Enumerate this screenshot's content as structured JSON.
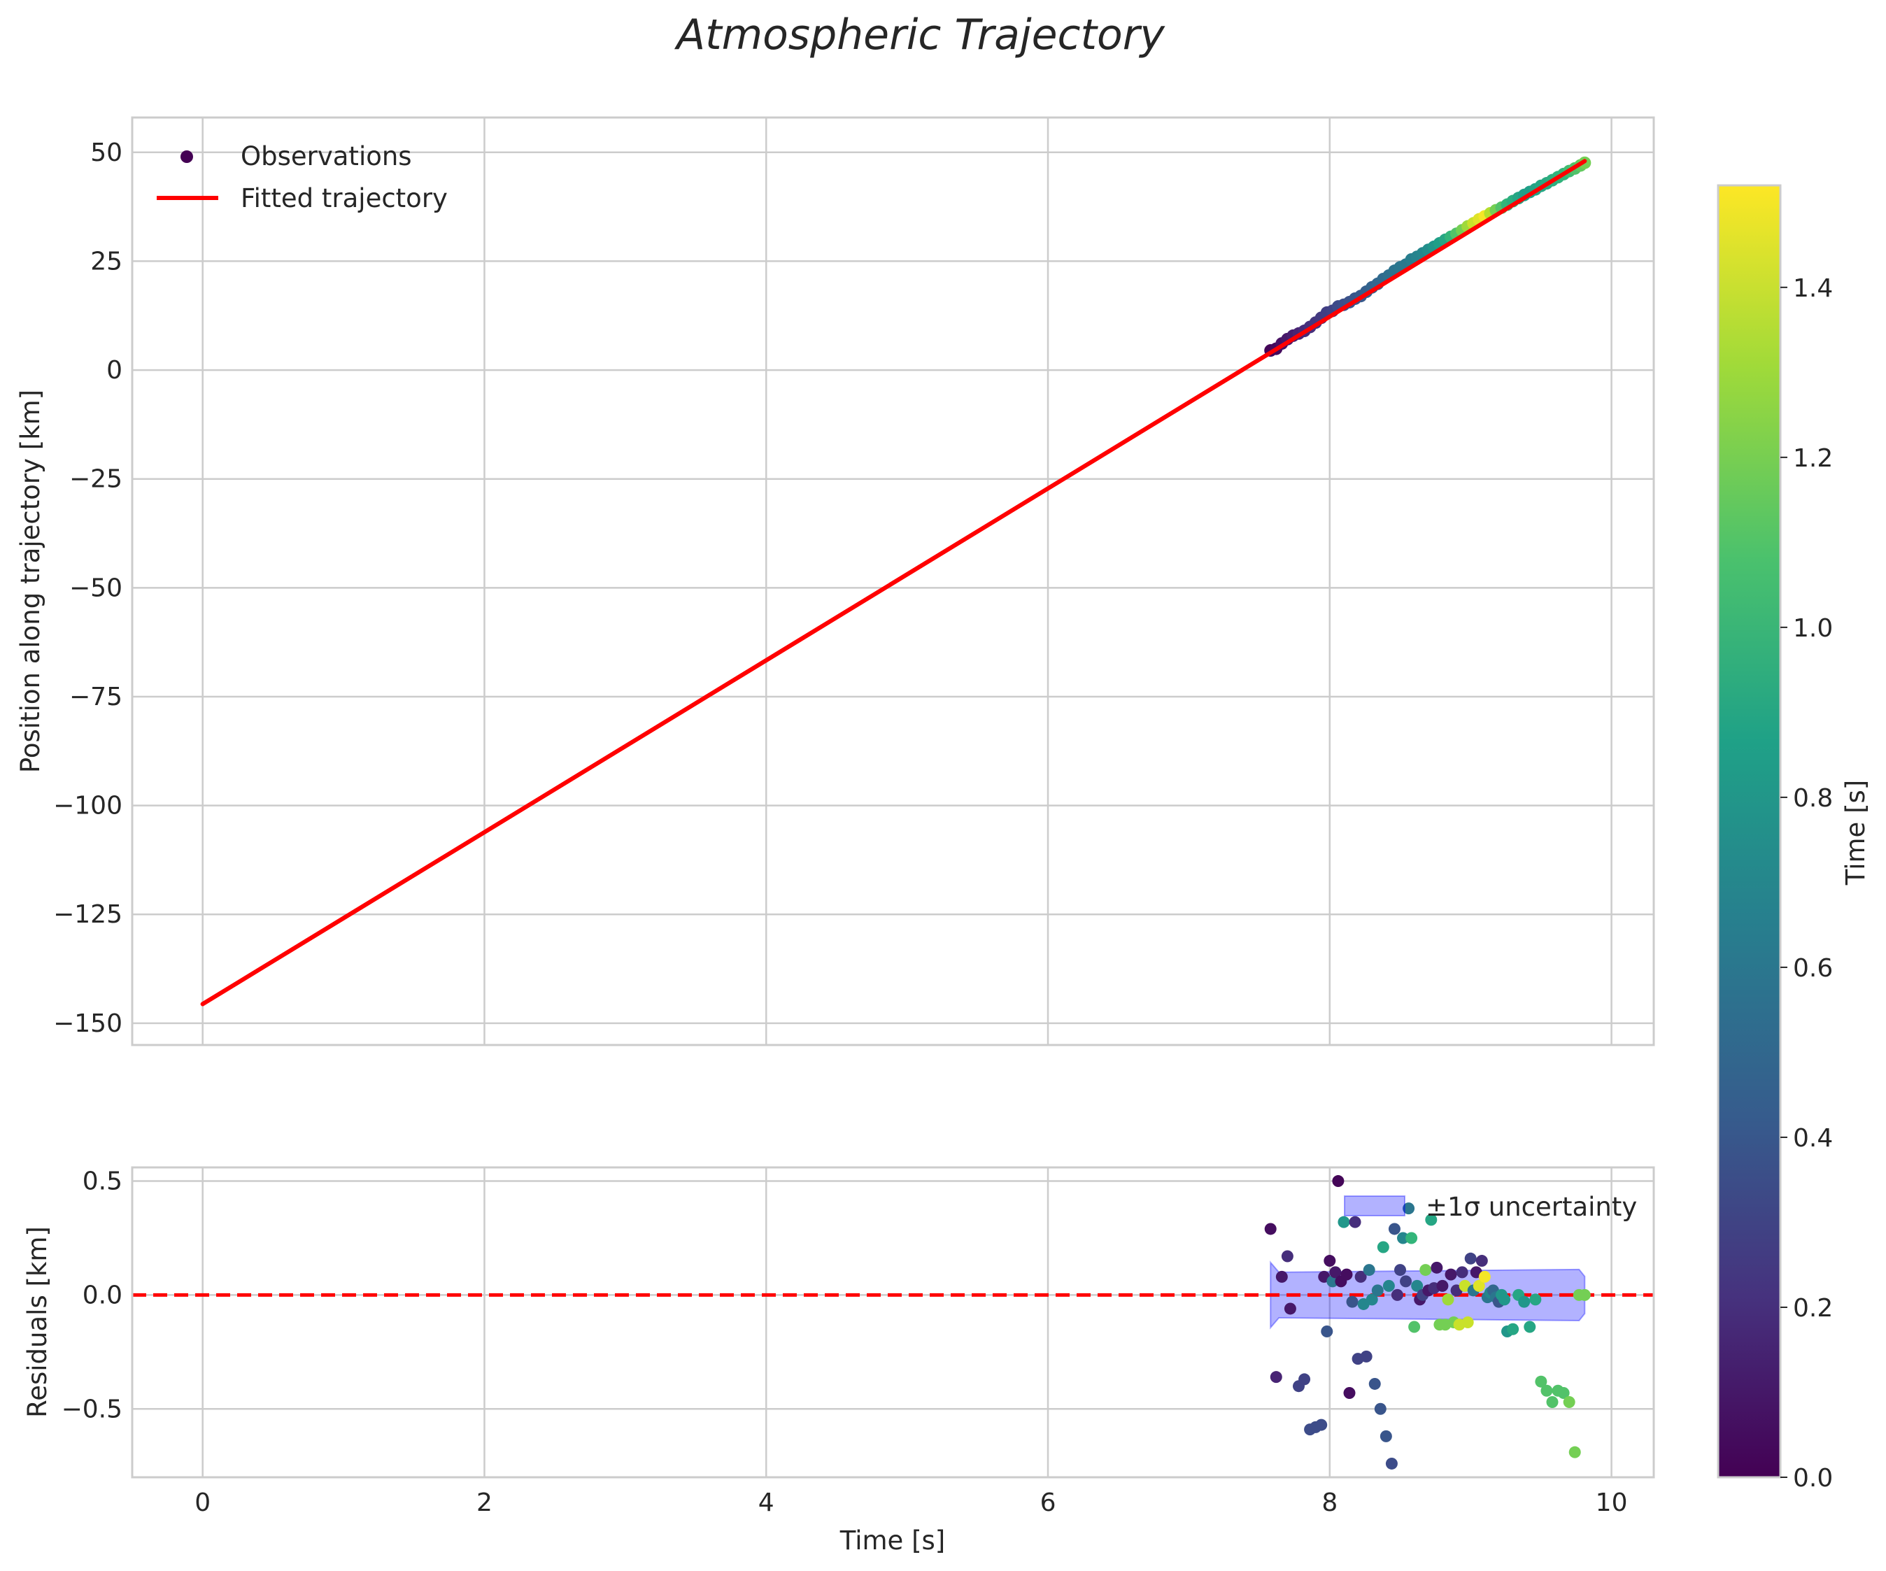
{
  "chart_data": [
    {
      "type": "scatter",
      "title": "Atmospheric Trajectory",
      "xlabel": "",
      "ylabel": "Position along trajectory [km]",
      "xlim": [
        -0.5,
        10.3
      ],
      "ylim": [
        -155,
        58
      ],
      "xticks": [
        0,
        2,
        4,
        6,
        8,
        10
      ],
      "yticks": [
        50,
        25,
        0,
        -25,
        -50,
        -75,
        -100,
        -125,
        -150
      ],
      "ytick_labels": [
        "50",
        "25",
        "0",
        "−25",
        "−50",
        "−75",
        "−100",
        "−125",
        "−150"
      ],
      "grid": true,
      "legend": {
        "position": "top-left",
        "entries": [
          "Observations",
          "Fitted trajectory"
        ]
      },
      "series": [
        {
          "name": "Observations",
          "kind": "scatter",
          "colormap": "viridis",
          "x": [
            7.58,
            7.62,
            7.66,
            7.7,
            7.74,
            7.78,
            7.82,
            7.86,
            7.9,
            7.94,
            7.98,
            8.02,
            8.06,
            8.1,
            8.14,
            8.18,
            8.22,
            8.26,
            8.3,
            8.34,
            8.38,
            8.42,
            8.46,
            8.5,
            8.54,
            8.58,
            8.62,
            8.66,
            8.7,
            8.74,
            8.78,
            8.82,
            8.86,
            8.9,
            8.94,
            8.98,
            9.02,
            9.06,
            9.1,
            9.14,
            9.18,
            9.22,
            9.26,
            9.3,
            9.34,
            9.38,
            9.42,
            9.46,
            9.5,
            9.54,
            9.58,
            9.62,
            9.66,
            9.7,
            9.74,
            9.78,
            9.81
          ],
          "y": [
            4.5,
            4.9,
            6.1,
            7.1,
            7.9,
            8.4,
            9.0,
            9.9,
            10.9,
            12.0,
            13.2,
            13.6,
            14.6,
            15.0,
            15.6,
            16.4,
            17.0,
            18.0,
            19.0,
            19.8,
            20.9,
            21.7,
            22.8,
            23.6,
            24.2,
            25.4,
            26.0,
            26.8,
            27.6,
            28.3,
            29.1,
            29.9,
            30.6,
            31.3,
            32.1,
            33.0,
            33.7,
            34.6,
            35.3,
            36.0,
            36.7,
            37.3,
            38.0,
            38.8,
            39.5,
            40.2,
            40.9,
            41.5,
            42.3,
            42.9,
            43.6,
            44.3,
            45.0,
            45.7,
            46.3,
            47.0,
            47.6
          ],
          "color": [
            0.02,
            0.04,
            0.07,
            0.1,
            0.12,
            0.15,
            0.18,
            0.21,
            0.24,
            0.26,
            0.28,
            0.3,
            0.34,
            0.36,
            0.38,
            0.4,
            0.42,
            0.45,
            0.48,
            0.5,
            0.52,
            0.55,
            0.58,
            0.6,
            0.62,
            0.65,
            0.68,
            0.7,
            0.75,
            0.8,
            0.85,
            0.9,
            1.0,
            1.1,
            1.2,
            1.3,
            1.4,
            1.45,
            1.5,
            1.35,
            1.2,
            1.1,
            1.0,
            0.95,
            0.9,
            0.85,
            0.85,
            0.88,
            0.9,
            0.92,
            0.95,
            0.98,
            1.0,
            1.05,
            1.1,
            1.15,
            1.2
          ]
        },
        {
          "name": "Fitted trajectory",
          "kind": "line",
          "color": "#ff0000",
          "x": [
            0,
            9.81
          ],
          "y": [
            -145.6,
            48.0
          ]
        }
      ]
    },
    {
      "type": "scatter",
      "title": "",
      "xlabel": "Time [s]",
      "ylabel": "Residuals [km]",
      "xlim": [
        -0.5,
        10.3
      ],
      "ylim": [
        -0.8,
        0.56
      ],
      "xticks": [
        0,
        2,
        4,
        6,
        8,
        10
      ],
      "xtick_labels": [
        "0",
        "2",
        "4",
        "6",
        "8",
        "10"
      ],
      "yticks": [
        0.5,
        0.0,
        -0.5
      ],
      "ytick_labels": [
        "0.5",
        "0.0",
        "−0.5"
      ],
      "grid": true,
      "legend": {
        "position": "top-right",
        "entries": [
          "±1σ uncertainty"
        ]
      },
      "reference_line": {
        "y": 0.0,
        "style": "dashed",
        "color": "#ff0000"
      },
      "uncertainty_band": {
        "x": [
          7.58,
          9.81
        ],
        "lower": -0.1,
        "upper": 0.1,
        "color": "#0000ff"
      },
      "series": [
        {
          "name": "Residuals",
          "kind": "scatter",
          "colormap": "viridis",
          "x": [
            7.58,
            7.62,
            7.66,
            7.7,
            7.72,
            7.78,
            7.82,
            7.86,
            7.9,
            7.94,
            7.96,
            7.98,
            8.0,
            8.02,
            8.04,
            8.06,
            8.08,
            8.1,
            8.12,
            8.14,
            8.16,
            8.18,
            8.2,
            8.22,
            8.24,
            8.26,
            8.28,
            8.3,
            8.32,
            8.34,
            8.36,
            8.38,
            8.4,
            8.42,
            8.44,
            8.46,
            8.48,
            8.5,
            8.52,
            8.54,
            8.56,
            8.58,
            8.6,
            8.62,
            8.64,
            8.66,
            8.68,
            8.7,
            8.72,
            8.74,
            8.76,
            8.78,
            8.8,
            8.82,
            8.84,
            8.86,
            8.88,
            8.9,
            8.92,
            8.94,
            8.96,
            8.98,
            9.0,
            9.02,
            9.04,
            9.06,
            9.08,
            9.1,
            9.12,
            9.14,
            9.16,
            9.18,
            9.2,
            9.22,
            9.24,
            9.26,
            9.3,
            9.34,
            9.38,
            9.42,
            9.46,
            9.5,
            9.54,
            9.58,
            9.62,
            9.66,
            9.7,
            9.74,
            9.77,
            9.81
          ],
          "y": [
            0.29,
            -0.36,
            0.08,
            0.17,
            -0.06,
            -0.4,
            -0.37,
            -0.59,
            -0.58,
            -0.57,
            0.08,
            -0.16,
            0.15,
            0.06,
            0.1,
            0.5,
            0.06,
            0.32,
            0.09,
            -0.43,
            -0.03,
            0.32,
            -0.28,
            0.08,
            -0.04,
            -0.27,
            0.11,
            -0.02,
            -0.39,
            0.02,
            -0.5,
            0.21,
            -0.62,
            0.04,
            -0.74,
            0.29,
            0.0,
            0.11,
            0.25,
            0.06,
            0.38,
            0.25,
            -0.14,
            0.04,
            -0.02,
            0.0,
            0.11,
            0.02,
            0.33,
            0.03,
            0.12,
            -0.13,
            0.04,
            -0.13,
            -0.02,
            0.09,
            -0.12,
            0.02,
            -0.13,
            0.1,
            0.04,
            -0.12,
            0.16,
            0.02,
            0.1,
            0.04,
            0.15,
            0.08,
            -0.01,
            0.01,
            0.02,
            -0.01,
            -0.03,
            0.0,
            -0.02,
            -0.16,
            -0.15,
            0.0,
            -0.03,
            -0.14,
            -0.02,
            -0.38,
            -0.42,
            -0.47,
            -0.42,
            -0.43,
            -0.47,
            -0.69,
            0.0,
            0.0
          ],
          "color": [
            0.05,
            0.15,
            0.1,
            0.2,
            0.1,
            0.3,
            0.3,
            0.35,
            0.35,
            0.35,
            0.1,
            0.4,
            0.05,
            0.6,
            0.1,
            0.02,
            0.05,
            0.8,
            0.05,
            0.05,
            0.4,
            0.2,
            0.3,
            0.2,
            0.7,
            0.3,
            0.6,
            0.7,
            0.4,
            0.6,
            0.4,
            0.9,
            0.4,
            0.7,
            0.35,
            0.4,
            0.2,
            0.3,
            0.7,
            0.3,
            0.6,
            1.0,
            1.1,
            0.7,
            0.1,
            0.3,
            1.2,
            0.1,
            0.9,
            0.2,
            0.1,
            1.2,
            0.1,
            1.2,
            1.3,
            0.1,
            1.2,
            0.2,
            1.4,
            0.2,
            1.4,
            1.4,
            0.3,
            0.6,
            0.1,
            1.45,
            0.2,
            1.5,
            0.6,
            0.7,
            0.5,
            0.6,
            0.4,
            0.8,
            0.8,
            0.8,
            0.9,
            0.9,
            0.8,
            0.9,
            0.9,
            1.1,
            1.1,
            1.1,
            1.1,
            1.1,
            1.2,
            1.2,
            1.2,
            1.2
          ]
        }
      ]
    }
  ],
  "colorbar": {
    "label": "Time [s]",
    "range": [
      0.0,
      1.52
    ],
    "ticks": [
      0.0,
      0.2,
      0.4,
      0.6,
      0.8,
      1.0,
      1.2,
      1.4
    ],
    "tick_labels": [
      "0.0",
      "0.2",
      "0.4",
      "0.6",
      "0.8",
      "1.0",
      "1.2",
      "1.4"
    ]
  }
}
